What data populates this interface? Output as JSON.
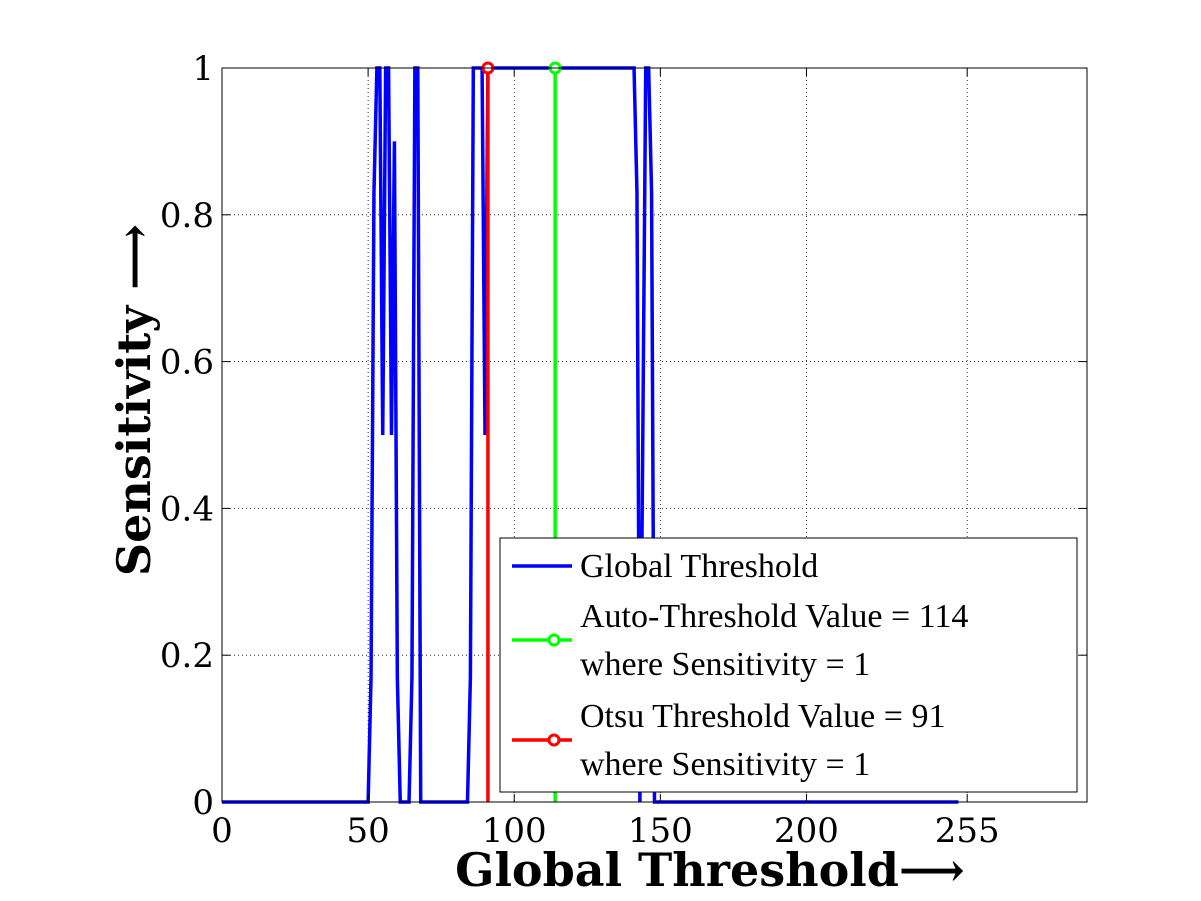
{
  "chart_data": {
    "type": "line",
    "xlabel": "Global Threshold⟶",
    "ylabel": "Sensitivity ⟶",
    "xlim": [
      0,
      296
    ],
    "ylim": [
      0,
      1
    ],
    "x_ticks": [
      0,
      50,
      100,
      150,
      200,
      255
    ],
    "y_ticks": [
      0,
      0.2,
      0.4,
      0.6,
      0.8,
      1
    ],
    "grid": true,
    "legend_position": "bottom-right",
    "series": [
      {
        "name": "Global Threshold",
        "color": "#0000ff",
        "x": [
          0,
          50,
          51,
          52,
          53,
          54,
          55,
          56,
          57,
          58,
          59,
          60,
          61,
          62,
          63,
          64,
          65,
          66,
          67,
          68,
          84,
          85,
          86,
          87,
          88,
          89,
          90,
          91,
          92,
          141,
          142,
          143,
          144,
          145,
          146,
          147,
          148,
          149,
          150,
          252
        ],
        "y": [
          0,
          0,
          0.17,
          0.83,
          1,
          1,
          0.5,
          1,
          1,
          0.5,
          0.9,
          0.17,
          0,
          0,
          0,
          0,
          0.17,
          1,
          1,
          0,
          0,
          0.17,
          1,
          1,
          1,
          1,
          0.5,
          1,
          1,
          1,
          0.83,
          0,
          0.5,
          1,
          1,
          0.83,
          0,
          0,
          0,
          0
        ]
      },
      {
        "name": "Auto-Threshold Value = 114",
        "name_line2": "where Sensitivity = 1",
        "color": "#00ff00",
        "marker": "circle",
        "x": [
          114,
          114
        ],
        "y": [
          0,
          1
        ]
      },
      {
        "name": "Otsu Threshold Value = 91",
        "name_line2": "where Sensitivity = 1",
        "color": "#ff0000",
        "marker": "circle",
        "x": [
          91,
          91
        ],
        "y": [
          0,
          1
        ]
      }
    ]
  }
}
